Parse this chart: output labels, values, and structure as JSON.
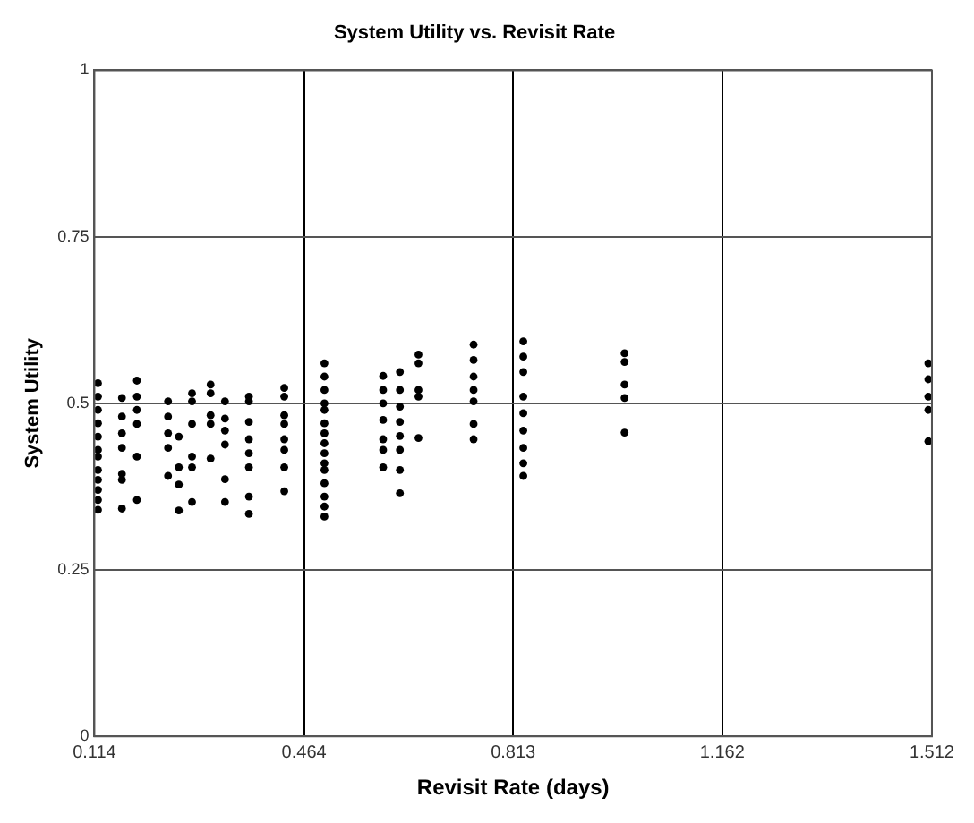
{
  "chart_data": {
    "type": "scatter",
    "title": "System Utility vs. Revisit Rate",
    "xlabel": "Revisit Rate (days)",
    "ylabel": "System Utility",
    "xlim": [
      0.114,
      1.512
    ],
    "xticks": [
      0.114,
      0.464,
      0.813,
      1.162,
      1.512
    ],
    "ylim": [
      0,
      1
    ],
    "yticks": [
      0,
      0.25,
      0.5,
      0.75,
      1
    ],
    "grid": true,
    "marker": "circle",
    "legend": false,
    "series": [
      {
        "color": "#000000",
        "x": [
          0.12,
          0.12,
          0.12,
          0.12,
          0.12,
          0.12,
          0.12,
          0.12,
          0.12,
          0.12,
          0.12,
          0.12,
          0.16,
          0.16,
          0.16,
          0.16,
          0.16,
          0.16,
          0.16,
          0.185,
          0.185,
          0.185,
          0.185,
          0.185,
          0.185,
          0.237,
          0.237,
          0.237,
          0.237,
          0.237,
          0.255,
          0.255,
          0.255,
          0.255,
          0.277,
          0.277,
          0.277,
          0.277,
          0.277,
          0.277,
          0.308,
          0.308,
          0.308,
          0.308,
          0.308,
          0.332,
          0.332,
          0.332,
          0.332,
          0.332,
          0.332,
          0.372,
          0.372,
          0.372,
          0.372,
          0.372,
          0.372,
          0.372,
          0.372,
          0.431,
          0.431,
          0.431,
          0.431,
          0.431,
          0.431,
          0.431,
          0.431,
          0.498,
          0.498,
          0.498,
          0.498,
          0.498,
          0.498,
          0.498,
          0.498,
          0.498,
          0.498,
          0.498,
          0.498,
          0.498,
          0.498,
          0.498,
          0.596,
          0.596,
          0.596,
          0.596,
          0.596,
          0.596,
          0.596,
          0.624,
          0.624,
          0.624,
          0.624,
          0.624,
          0.624,
          0.624,
          0.624,
          0.655,
          0.655,
          0.655,
          0.655,
          0.655,
          0.747,
          0.747,
          0.747,
          0.747,
          0.747,
          0.747,
          0.747,
          0.83,
          0.83,
          0.83,
          0.83,
          0.83,
          0.83,
          0.83,
          0.83,
          0.83,
          0.999,
          0.999,
          0.999,
          0.999,
          0.999,
          1.506,
          1.506,
          1.506,
          1.506,
          1.506
        ],
        "values": [
          0.53,
          0.51,
          0.49,
          0.47,
          0.45,
          0.43,
          0.42,
          0.4,
          0.385,
          0.37,
          0.355,
          0.34,
          0.508,
          0.48,
          0.455,
          0.433,
          0.394,
          0.385,
          0.342,
          0.534,
          0.51,
          0.49,
          0.469,
          0.42,
          0.355,
          0.503,
          0.48,
          0.455,
          0.433,
          0.391,
          0.45,
          0.404,
          0.378,
          0.339,
          0.515,
          0.503,
          0.469,
          0.42,
          0.404,
          0.352,
          0.528,
          0.515,
          0.482,
          0.469,
          0.417,
          0.503,
          0.477,
          0.459,
          0.438,
          0.386,
          0.352,
          0.51,
          0.503,
          0.472,
          0.446,
          0.425,
          0.404,
          0.36,
          0.334,
          0.523,
          0.51,
          0.482,
          0.469,
          0.446,
          0.43,
          0.404,
          0.368,
          0.56,
          0.54,
          0.52,
          0.5,
          0.49,
          0.47,
          0.455,
          0.44,
          0.425,
          0.41,
          0.4,
          0.38,
          0.36,
          0.345,
          0.33,
          0.541,
          0.52,
          0.5,
          0.475,
          0.446,
          0.43,
          0.404,
          0.547,
          0.52,
          0.495,
          0.472,
          0.451,
          0.43,
          0.4,
          0.365,
          0.573,
          0.56,
          0.52,
          0.51,
          0.448,
          0.588,
          0.565,
          0.54,
          0.52,
          0.503,
          0.469,
          0.446,
          0.593,
          0.57,
          0.547,
          0.51,
          0.485,
          0.459,
          0.433,
          0.41,
          0.391,
          0.575,
          0.562,
          0.528,
          0.508,
          0.456,
          0.56,
          0.536,
          0.51,
          0.49,
          0.443
        ]
      }
    ]
  }
}
